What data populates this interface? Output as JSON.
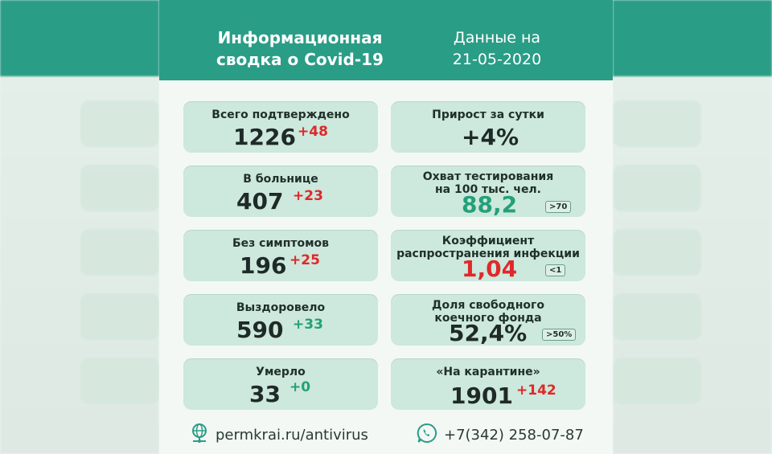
{
  "header": {
    "title_line1": "Информационная",
    "title_line2": "сводка о Covid-19",
    "date_line1": "Данные на",
    "date_line2": "21-05-2020"
  },
  "left_cards": [
    {
      "label": "Всего подтверждено",
      "value": "1226",
      "delta": "+48",
      "delta_color": "#e0282a"
    },
    {
      "label": "В больнице",
      "value": "407",
      "delta": "+23",
      "delta_color": "#e0282a"
    },
    {
      "label": "Без симптомов",
      "value": "196",
      "delta": "+25",
      "delta_color": "#e0282a"
    },
    {
      "label": "Выздоровело",
      "value": "590",
      "delta": "+33",
      "delta_color": "#23a07a"
    },
    {
      "label": "Умерло",
      "value": "33",
      "delta": "+0",
      "delta_color": "#23a07a"
    }
  ],
  "right_cards": [
    {
      "label_line1": "Прирост за сутки",
      "label_line2": "",
      "value": "+4%",
      "badge": ""
    },
    {
      "label_line1": "Охват тестирования",
      "label_line2": "на 100 тыс. чел.",
      "value": "88,2",
      "badge": ">70",
      "value_color": "#23a07a"
    },
    {
      "label_line1": "Коэффициент",
      "label_line2": "распространения инфекции",
      "value": "1,04",
      "badge": "<1",
      "value_color": "#e0282a"
    },
    {
      "label_line1": "Доля свободного",
      "label_line2": "коечного фонда",
      "value": "52,4%",
      "badge": ">50%"
    },
    {
      "label_line1": "«На карантине»",
      "label_line2": "",
      "value": "1901",
      "delta": "+142",
      "delta_color": "#e0282a"
    }
  ],
  "footer": {
    "website": "permkrai.ru/antivirus",
    "phone": "+7(342) 258-07-87",
    "website_icon": "globe-network-icon",
    "phone_icon": "whatsapp-phone-icon"
  },
  "colors": {
    "header_bg": "#2a9d86",
    "card_bg": "#cde8dc",
    "increase_red": "#e0282a",
    "good_green": "#23a07a"
  }
}
